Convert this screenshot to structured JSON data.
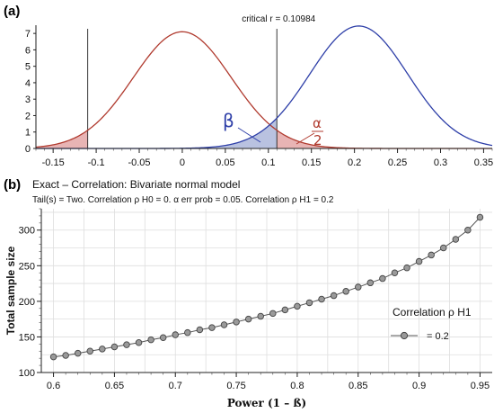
{
  "panel_a_label": "(a)",
  "panel_b_label": "(b)",
  "chart_data": [
    {
      "type": "line",
      "panel": "(a)",
      "title": "",
      "annotation_critical": "critical r = 0.10984",
      "critical_r": 0.10984,
      "xlim": [
        -0.17,
        0.36
      ],
      "ylim": [
        0,
        7.5
      ],
      "x_ticks": [
        -0.15,
        -0.1,
        -0.05,
        0,
        0.05,
        0.1,
        0.15,
        0.2,
        0.25,
        0.3,
        0.35
      ],
      "x_tick_labels": [
        "-0.15",
        "-0.1",
        "-0.05",
        "0",
        "0.05",
        "0.1",
        "0.15",
        "0.2",
        "0.25",
        "0.3",
        "0.35"
      ],
      "y_ticks": [
        0,
        1,
        2,
        3,
        4,
        5,
        6,
        7
      ],
      "y_tick_labels": [
        "0",
        "1",
        "2",
        "3",
        "4",
        "5",
        "6",
        "7"
      ],
      "series": [
        {
          "role": "H0 distribution",
          "mean": 0,
          "peak": 7.1,
          "color": "#b03a2e"
        },
        {
          "role": "H1 distribution",
          "mean": 0.205,
          "peak": 7.45,
          "color": "#2e3fa8"
        }
      ],
      "shaded_regions": [
        {
          "role": "alpha/2 lower tail",
          "from": -0.17,
          "to": -0.10984,
          "color": "#e8b4b4"
        },
        {
          "role": "alpha/2 upper tail",
          "from": 0.10984,
          "to": 0.36,
          "color": "#e8b4b4"
        },
        {
          "role": "beta",
          "from": -0.17,
          "to": 0.10984,
          "color": "#b9c2e0"
        }
      ],
      "vertical_lines": [
        -0.10984,
        0.10984
      ],
      "beta_label": "β",
      "alpha_label_top": "α",
      "alpha_label_bottom": "2"
    },
    {
      "type": "line",
      "panel": "(b)",
      "title": "Exact – Correlation: Bivariate normal model",
      "subtitle": "Tail(s) = Two. Correlation ρ H0 = 0. α err prob = 0.05. Correlation ρ H1 = 0.2",
      "xlabel": "Power (1 – ß)",
      "ylabel": "Total sample size",
      "xlim": [
        0.59,
        0.96
      ],
      "ylim": [
        100,
        330
      ],
      "x_ticks": [
        0.6,
        0.65,
        0.7,
        0.75,
        0.8,
        0.85,
        0.9,
        0.95
      ],
      "x_tick_labels": [
        "0.6",
        "0.65",
        "0.7",
        "0.75",
        "0.8",
        "0.85",
        "0.9",
        "0.95"
      ],
      "y_ticks": [
        100,
        150,
        200,
        250,
        300
      ],
      "y_tick_labels": [
        "100",
        "150",
        "200",
        "250",
        "300"
      ],
      "legend_title": "Correlation ρ H1",
      "legend_placement": "right",
      "grid": true,
      "series": [
        {
          "name": "= 0.2",
          "color": "#555555",
          "x": [
            0.6,
            0.61,
            0.62,
            0.63,
            0.64,
            0.65,
            0.66,
            0.67,
            0.68,
            0.69,
            0.7,
            0.71,
            0.72,
            0.73,
            0.74,
            0.75,
            0.76,
            0.77,
            0.78,
            0.79,
            0.8,
            0.81,
            0.82,
            0.83,
            0.84,
            0.85,
            0.86,
            0.87,
            0.88,
            0.89,
            0.9,
            0.91,
            0.92,
            0.93,
            0.94,
            0.95
          ],
          "y": [
            122,
            124,
            127,
            130,
            133,
            136,
            139,
            142,
            146,
            149,
            153,
            156,
            160,
            163,
            167,
            171,
            175,
            179,
            183,
            188,
            193,
            198,
            203,
            208,
            214,
            220,
            226,
            232,
            240,
            247,
            256,
            265,
            275,
            287,
            300,
            318
          ]
        }
      ]
    }
  ]
}
